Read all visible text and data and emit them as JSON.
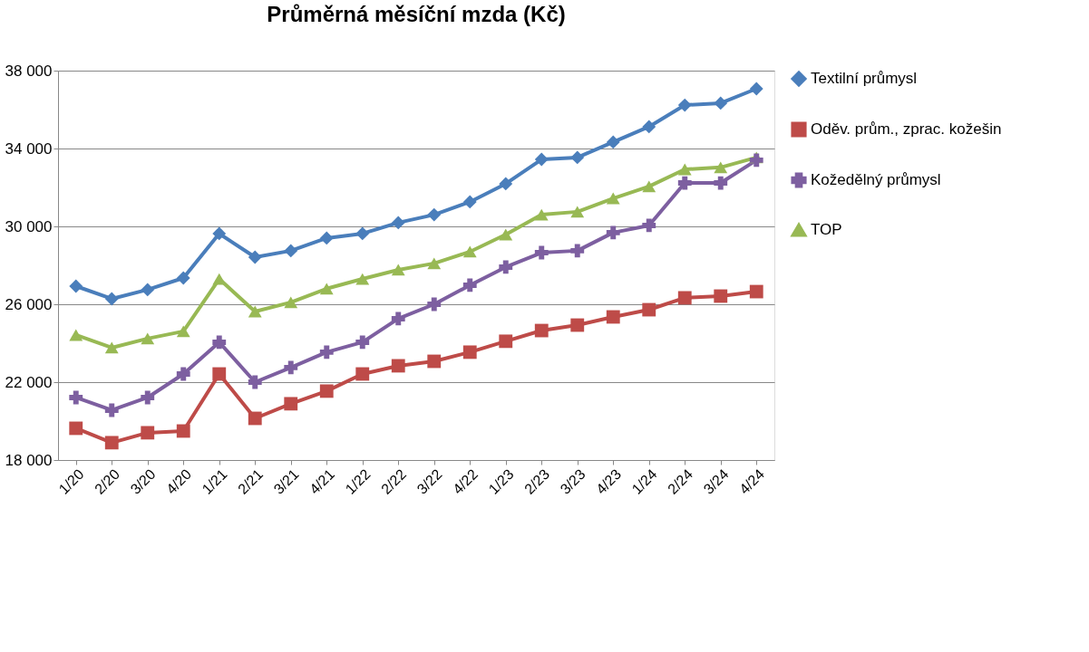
{
  "chart_data": {
    "type": "line",
    "title": "Průměrná měsíční mzda (Kč)",
    "categories": [
      "1/20",
      "2/20",
      "3/20",
      "4/20",
      "1/21",
      "2/21",
      "3/21",
      "4/21",
      "1/22",
      "2/22",
      "3/22",
      "4/22",
      "1/23",
      "2/23",
      "3/23",
      "4/23",
      "1/24",
      "2/24",
      "3/24",
      "4/24"
    ],
    "series": [
      {
        "name": "Textilní průmysl",
        "color": "#4a7ebb",
        "marker": "diamond",
        "values": [
          26930,
          26280,
          26750,
          27350,
          29630,
          28420,
          28750,
          29400,
          29630,
          30190,
          30600,
          31260,
          32190,
          33440,
          33540,
          34330,
          35120,
          36230,
          36330,
          37070
        ]
      },
      {
        "name": "Oděv. prům., zprac. kožešin",
        "color": "#be4b48",
        "marker": "square",
        "values": [
          19630,
          18890,
          19400,
          19490,
          22420,
          20140,
          20890,
          21540,
          22420,
          22840,
          23070,
          23540,
          24100,
          24650,
          24930,
          25350,
          25720,
          26330,
          26420,
          26650
        ]
      },
      {
        "name": "Kožedělný průmysl",
        "color": "#7d5fa0",
        "marker": "cross",
        "values": [
          21210,
          20560,
          21210,
          22420,
          24050,
          22000,
          22750,
          23540,
          24050,
          25260,
          26000,
          26980,
          27910,
          28650,
          28750,
          29680,
          30050,
          32230,
          32230,
          33400
        ]
      },
      {
        "name": "TOP",
        "color": "#98b954",
        "marker": "triangle",
        "values": [
          24420,
          23770,
          24240,
          24610,
          27300,
          25630,
          26100,
          26800,
          27300,
          27770,
          28100,
          28700,
          29580,
          30600,
          30750,
          31440,
          32050,
          32930,
          33030,
          33540
        ]
      }
    ],
    "ylim": [
      18000,
      38000
    ],
    "yticks": [
      {
        "value": 18000,
        "label": "18 000"
      },
      {
        "value": 22000,
        "label": "22 000"
      },
      {
        "value": 26000,
        "label": "26 000"
      },
      {
        "value": 30000,
        "label": "30 000"
      },
      {
        "value": 34000,
        "label": "34 000"
      },
      {
        "value": 38000,
        "label": "38 000"
      }
    ],
    "grid": "y",
    "legend": "right",
    "line_style": "solid"
  }
}
